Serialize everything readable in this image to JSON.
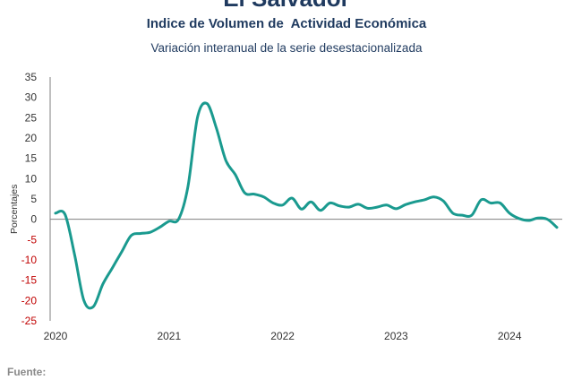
{
  "header": {
    "top_title": "El Salvador",
    "title": "Indice de Volumen de  Actividad Económica",
    "subtitle": "Variación interanual de la serie desestacionalizada"
  },
  "footer": {
    "source_label": "Fuente:"
  },
  "colors": {
    "line": "#1a9a8f",
    "negative_tick": "#c00000",
    "positive_tick": "#333333",
    "axis": "#7f7f7f",
    "title": "#1f3a5f"
  },
  "chart_data": {
    "type": "line",
    "title": "Indice de Volumen de  Actividad Económica",
    "subtitle": "Variación interanual de la serie desestacionalizada",
    "xlabel": "",
    "ylabel": "Porcentajes",
    "ylim": [
      -25,
      35
    ],
    "yticks": [
      35,
      30,
      25,
      20,
      15,
      10,
      5,
      0,
      -5,
      -10,
      -15,
      -20,
      -25
    ],
    "xlim": [
      "2020-01",
      "2024-06"
    ],
    "xticks": [
      "2020",
      "2021",
      "2022",
      "2023",
      "2024"
    ],
    "grid": false,
    "legend": "none",
    "series": [
      {
        "x": [
          "2020-01",
          "2020-02",
          "2020-03",
          "2020-04",
          "2020-05",
          "2020-06",
          "2020-07",
          "2020-08",
          "2020-09",
          "2020-10",
          "2020-11",
          "2020-12",
          "2021-01",
          "2021-02",
          "2021-03",
          "2021-04",
          "2021-05",
          "2021-06",
          "2021-07",
          "2021-08",
          "2021-09",
          "2021-10",
          "2021-11",
          "2021-12",
          "2022-01",
          "2022-02",
          "2022-03",
          "2022-04",
          "2022-05",
          "2022-06",
          "2022-07",
          "2022-08",
          "2022-09",
          "2022-10",
          "2022-11",
          "2022-12",
          "2023-01",
          "2023-02",
          "2023-03",
          "2023-04",
          "2023-05",
          "2023-06",
          "2023-07",
          "2023-08",
          "2023-09",
          "2023-10",
          "2023-11",
          "2023-12",
          "2024-01",
          "2024-02",
          "2024-03",
          "2024-04",
          "2024-05",
          "2024-06"
        ],
        "y": [
          1.5,
          1.2,
          -8.5,
          -20.0,
          -21.5,
          -16.0,
          -12.0,
          -8.0,
          -4.0,
          -3.5,
          -3.2,
          -2.0,
          -0.5,
          0.0,
          8.0,
          25.0,
          28.5,
          22.5,
          14.5,
          11.0,
          6.5,
          6.2,
          5.5,
          4.0,
          3.5,
          5.2,
          2.5,
          4.3,
          2.2,
          4.0,
          3.3,
          3.0,
          3.7,
          2.7,
          3.0,
          3.5,
          2.6,
          3.6,
          4.3,
          4.8,
          5.5,
          4.5,
          1.5,
          1.0,
          1.0,
          4.8,
          4.0,
          4.0,
          1.5,
          0.2,
          -0.3,
          0.3,
          0.0,
          -2.0
        ]
      }
    ]
  }
}
